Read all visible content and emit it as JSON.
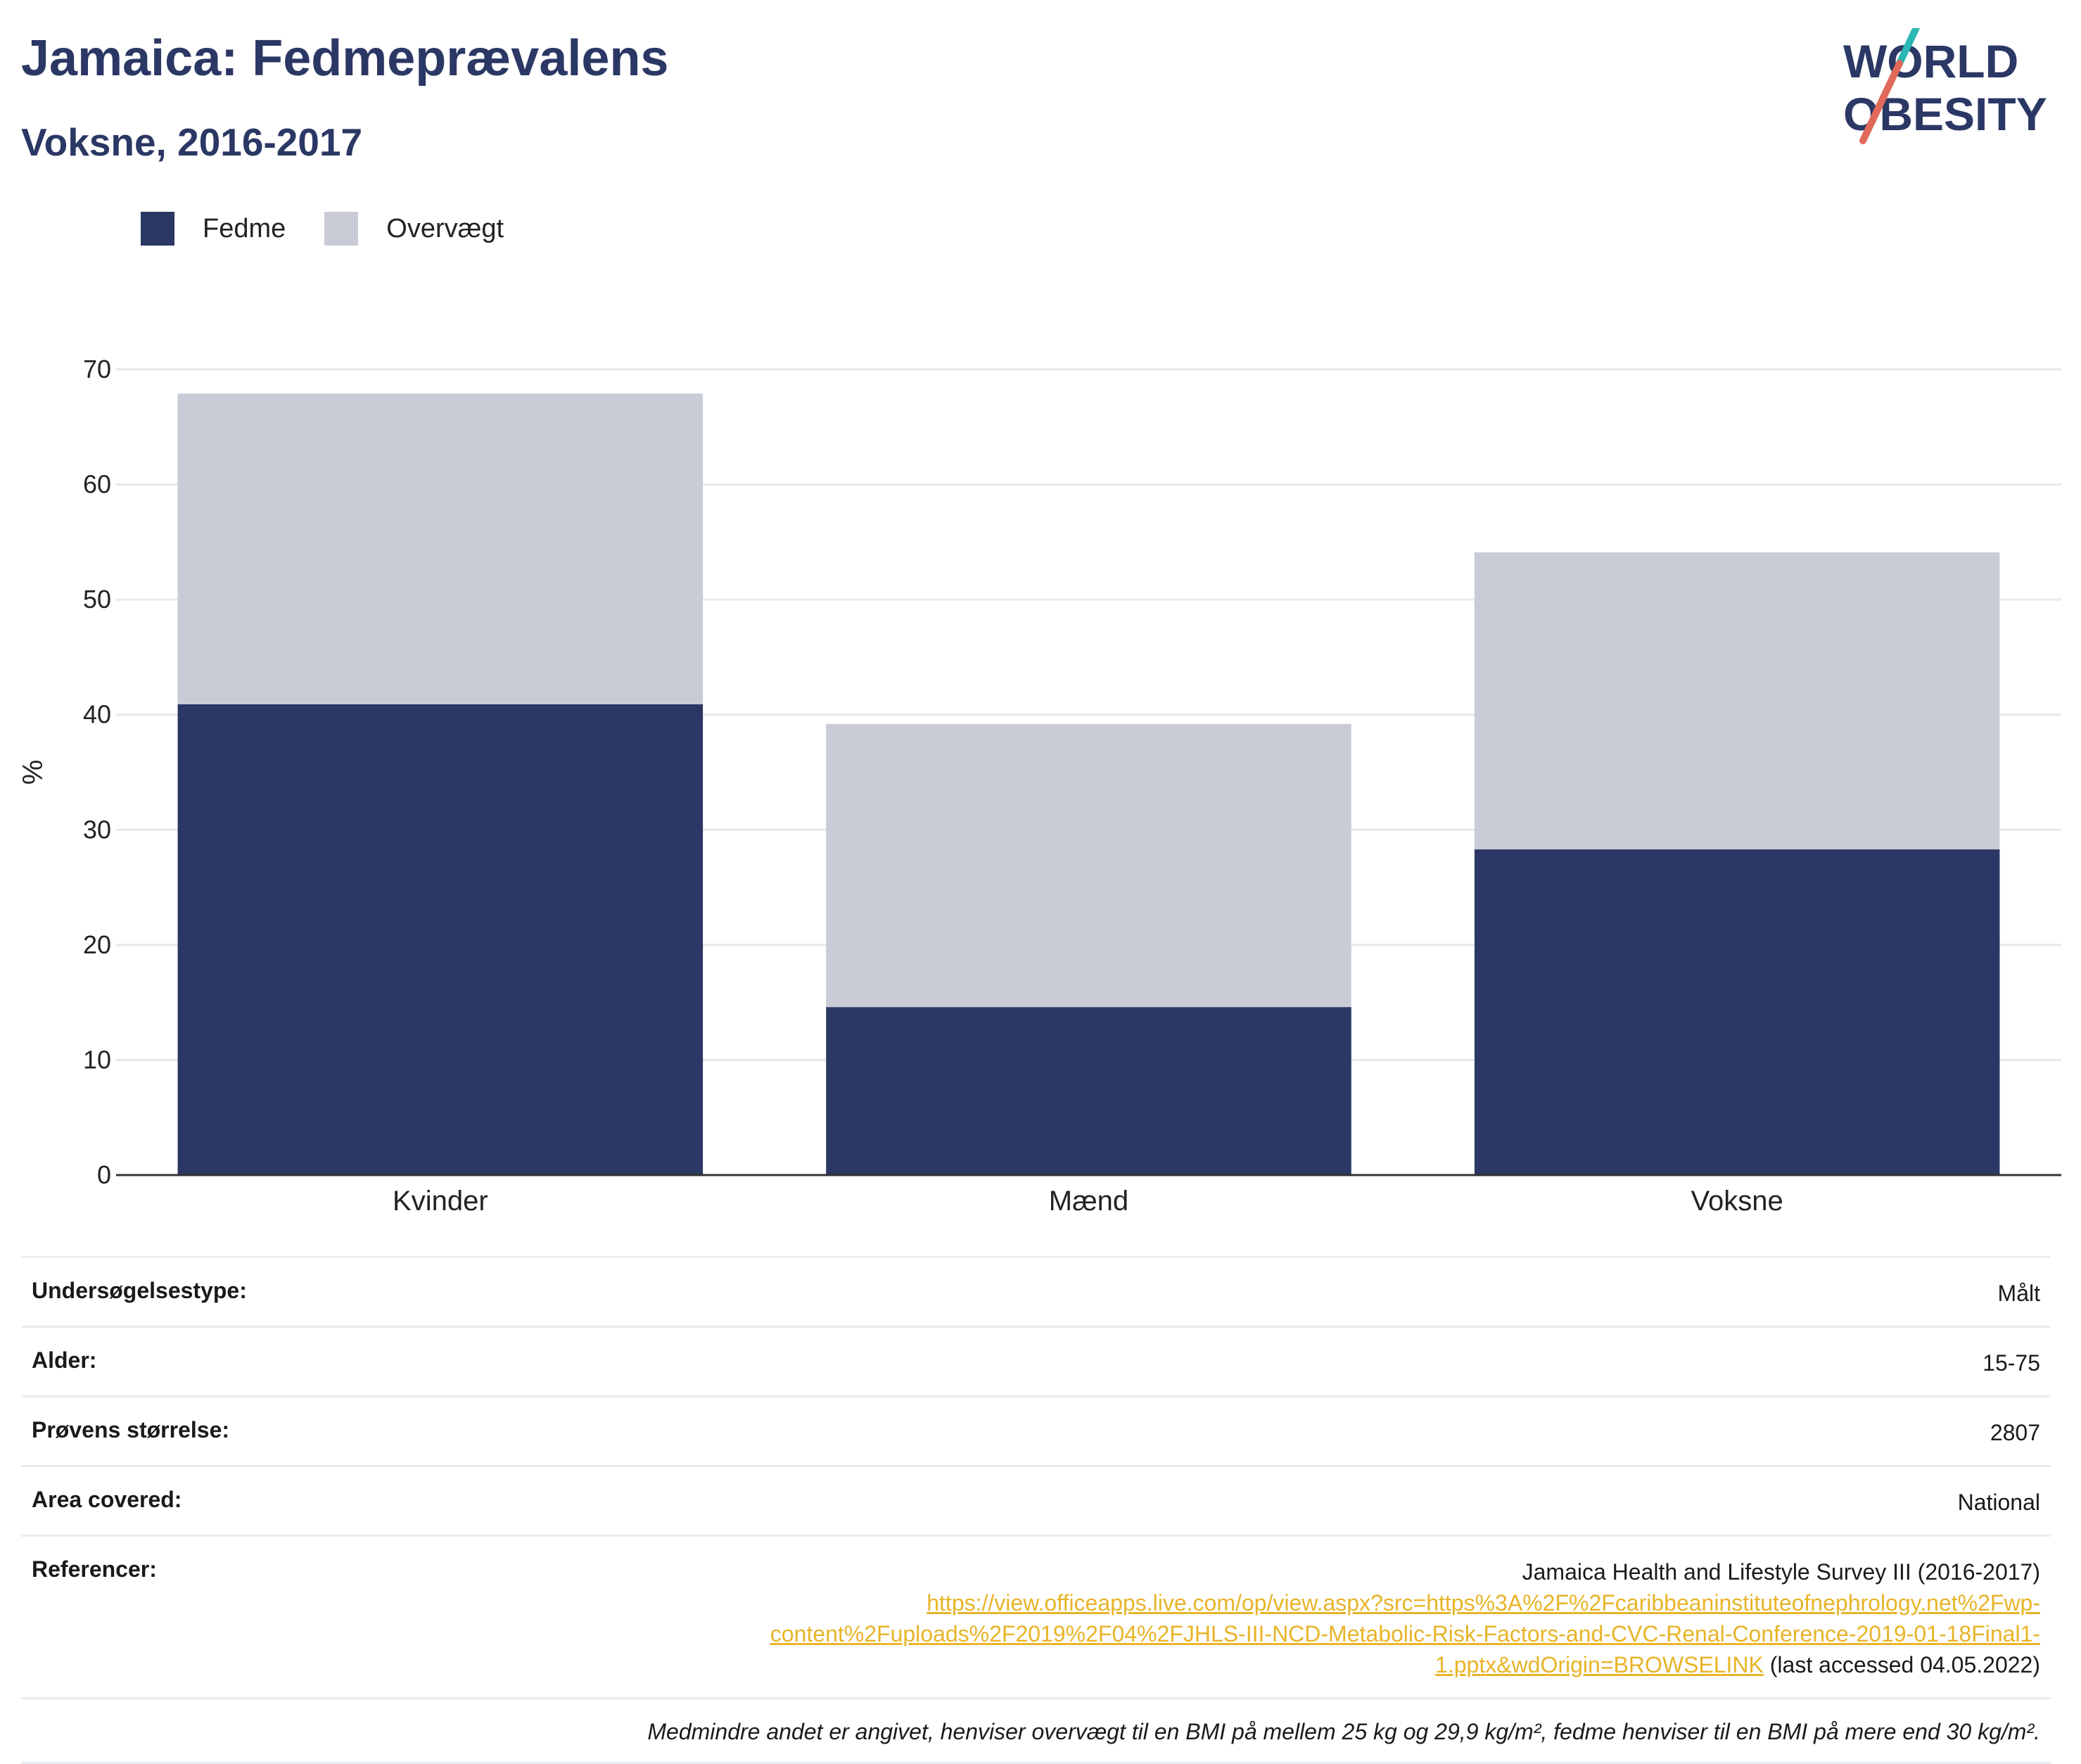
{
  "header": {
    "title": "Jamaica: Fedmeprævalens",
    "subtitle": "Voksne, 2016-2017"
  },
  "logo": {
    "line1": "WORLD",
    "line2": "OBESITY",
    "color_text": "#2b3764",
    "color_accent_red": "#e0695a",
    "color_accent_teal": "#2bb7b3"
  },
  "colors": {
    "fedme": "#2b3764",
    "overvaegt": "#c9ccd7",
    "grid": "#e6e8ec",
    "axis": "#333333"
  },
  "chart_data": {
    "type": "bar",
    "stacked": true,
    "categories": [
      "Kvinder",
      "Mænd",
      "Voksne"
    ],
    "series": [
      {
        "name": "Fedme",
        "values": [
          40.9,
          14.6,
          28.3
        ]
      },
      {
        "name": "Overvægt",
        "values": [
          27.0,
          24.6,
          25.8
        ]
      }
    ],
    "ylabel": "%",
    "ylim": [
      0,
      70
    ],
    "yticks": [
      0,
      10,
      20,
      30,
      40,
      50,
      60,
      70
    ],
    "grid": true,
    "legend_position": "top-left"
  },
  "info": {
    "survey_type": {
      "label": "Undersøgelsestype:",
      "value": "Målt"
    },
    "age": {
      "label": "Alder:",
      "value": "15-75"
    },
    "sample_size": {
      "label": "Prøvens størrelse:",
      "value": "2807"
    },
    "area": {
      "label": "Area covered:",
      "value": "National"
    },
    "references": {
      "label": "Referencer:",
      "source": "Jamaica Health and Lifestyle Survey III (2016-2017)",
      "link_line1": "https://view.officeapps.live.com/op/view.aspx?src=https%3A%2F%2Fcaribbeaninstituteofnephrology.net%2Fwp-",
      "link_line2": "content%2Fuploads%2F2019%2F04%2FJHLS-III-NCD-Metabolic-Risk-Factors-and-CVC-Renal-Conference-2019-01-18Final1-",
      "link_line3": "1.pptx&wdOrigin=BROWSELINK",
      "accessed": " (last accessed 04.05.2022)"
    },
    "note": "Medmindre andet er angivet, henviser overvægt til en BMI på mellem 25 kg og 29,9 kg/m², fedme henviser til en BMI på mere end 30 kg/m²."
  }
}
